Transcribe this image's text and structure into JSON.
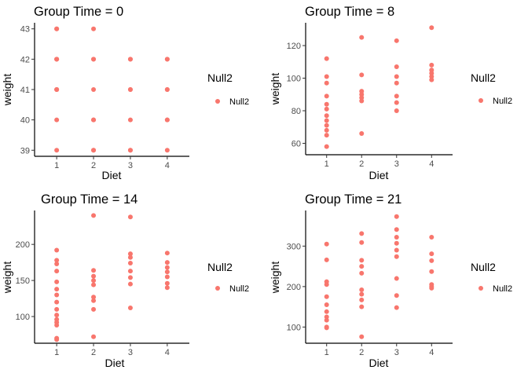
{
  "legend": {
    "title": "Null2",
    "label": "Null2",
    "color": "#F8766D"
  },
  "chart_data": [
    {
      "type": "scatter",
      "title": "Group Time  = 0",
      "xlabel": "Diet",
      "ylabel": "weight",
      "x_ticks": [
        1,
        2,
        3,
        4
      ],
      "y_ticks": [
        39,
        40,
        41,
        42,
        43
      ],
      "xlim": [
        0.4,
        4.6
      ],
      "ylim": [
        38.8,
        43.2
      ],
      "grid": false,
      "legend_position": "right",
      "series": [
        {
          "name": "Null2",
          "points": [
            [
              1,
              43
            ],
            [
              1,
              43
            ],
            [
              1,
              42
            ],
            [
              1,
              42
            ],
            [
              1,
              42
            ],
            [
              1,
              41
            ],
            [
              1,
              41
            ],
            [
              1,
              41
            ],
            [
              1,
              40
            ],
            [
              1,
              39
            ],
            [
              2,
              43
            ],
            [
              2,
              42
            ],
            [
              2,
              42
            ],
            [
              2,
              41
            ],
            [
              2,
              40
            ],
            [
              2,
              40
            ],
            [
              2,
              39
            ],
            [
              2,
              39
            ],
            [
              3,
              42
            ],
            [
              3,
              42
            ],
            [
              3,
              41
            ],
            [
              3,
              41
            ],
            [
              3,
              40
            ],
            [
              3,
              39
            ],
            [
              3,
              39
            ],
            [
              4,
              42
            ],
            [
              4,
              42
            ],
            [
              4,
              41
            ],
            [
              4,
              41
            ],
            [
              4,
              40
            ],
            [
              4,
              40
            ],
            [
              4,
              39
            ]
          ]
        }
      ]
    },
    {
      "type": "scatter",
      "title": "Group Time  = 8",
      "xlabel": "Diet",
      "ylabel": "weight",
      "x_ticks": [
        1,
        2,
        3,
        4
      ],
      "y_ticks": [
        60,
        80,
        100,
        120
      ],
      "xlim": [
        0.4,
        4.6
      ],
      "ylim": [
        53,
        134
      ],
      "grid": false,
      "legend_position": "right",
      "series": [
        {
          "name": "Null2",
          "points": [
            [
              1,
              112
            ],
            [
              1,
              101
            ],
            [
              1,
              97
            ],
            [
              1,
              89
            ],
            [
              1,
              84
            ],
            [
              1,
              81
            ],
            [
              1,
              77
            ],
            [
              1,
              74
            ],
            [
              1,
              71
            ],
            [
              1,
              68
            ],
            [
              1,
              65
            ],
            [
              1,
              58
            ],
            [
              2,
              125
            ],
            [
              2,
              102
            ],
            [
              2,
              92
            ],
            [
              2,
              90
            ],
            [
              2,
              88
            ],
            [
              2,
              86
            ],
            [
              2,
              66
            ],
            [
              3,
              123
            ],
            [
              3,
              107
            ],
            [
              3,
              101
            ],
            [
              3,
              97
            ],
            [
              3,
              89
            ],
            [
              3,
              85
            ],
            [
              3,
              80
            ],
            [
              4,
              131
            ],
            [
              4,
              108
            ],
            [
              4,
              105
            ],
            [
              4,
              103
            ],
            [
              4,
              101
            ],
            [
              4,
              99
            ]
          ]
        }
      ]
    },
    {
      "type": "scatter",
      "title": "Group Time  = 14",
      "xlabel": "Diet",
      "ylabel": "weight",
      "x_ticks": [
        1,
        2,
        3,
        4
      ],
      "y_ticks": [
        100,
        150,
        200
      ],
      "xlim": [
        0.4,
        4.6
      ],
      "ylim": [
        63,
        247
      ],
      "grid": false,
      "legend_position": "right",
      "series": [
        {
          "name": "Null2",
          "points": [
            [
              1,
              192
            ],
            [
              1,
              178
            ],
            [
              1,
              173
            ],
            [
              1,
              163
            ],
            [
              1,
              148
            ],
            [
              1,
              138
            ],
            [
              1,
              130
            ],
            [
              1,
              120
            ],
            [
              1,
              110
            ],
            [
              1,
              102
            ],
            [
              1,
              96
            ],
            [
              1,
              92
            ],
            [
              1,
              88
            ],
            [
              1,
              70
            ],
            [
              1,
              68
            ],
            [
              2,
              240
            ],
            [
              2,
              164
            ],
            [
              2,
              156
            ],
            [
              2,
              150
            ],
            [
              2,
              144
            ],
            [
              2,
              127
            ],
            [
              2,
              122
            ],
            [
              2,
              110
            ],
            [
              2,
              72
            ],
            [
              3,
              238
            ],
            [
              3,
              187
            ],
            [
              3,
              182
            ],
            [
              3,
              174
            ],
            [
              3,
              163
            ],
            [
              3,
              154
            ],
            [
              3,
              145
            ],
            [
              3,
              112
            ],
            [
              4,
              188
            ],
            [
              4,
              175
            ],
            [
              4,
              168
            ],
            [
              4,
              162
            ],
            [
              4,
              155
            ],
            [
              4,
              146
            ],
            [
              4,
              140
            ]
          ]
        }
      ]
    },
    {
      "type": "scatter",
      "title": "Group Time  = 21",
      "xlabel": "Diet",
      "ylabel": "weight",
      "x_ticks": [
        1,
        2,
        3,
        4
      ],
      "y_ticks": [
        100,
        200,
        300
      ],
      "xlim": [
        0.4,
        4.6
      ],
      "ylim": [
        60,
        388
      ],
      "grid": false,
      "legend_position": "right",
      "series": [
        {
          "name": "Null2",
          "points": [
            [
              1,
              305
            ],
            [
              1,
              266
            ],
            [
              1,
              212
            ],
            [
              1,
              205
            ],
            [
              1,
              175
            ],
            [
              1,
              155
            ],
            [
              1,
              138
            ],
            [
              1,
              125
            ],
            [
              1,
              117
            ],
            [
              1,
              100
            ],
            [
              1,
              98
            ],
            [
              2,
              331
            ],
            [
              2,
              309
            ],
            [
              2,
              265
            ],
            [
              2,
              250
            ],
            [
              2,
              233
            ],
            [
              2,
              192
            ],
            [
              2,
              181
            ],
            [
              2,
              167
            ],
            [
              2,
              150
            ],
            [
              2,
              76
            ],
            [
              3,
              373
            ],
            [
              3,
              341
            ],
            [
              3,
              322
            ],
            [
              3,
              307
            ],
            [
              3,
              290
            ],
            [
              3,
              274
            ],
            [
              3,
              220
            ],
            [
              3,
              178
            ],
            [
              3,
              148
            ],
            [
              4,
              322
            ],
            [
              4,
              281
            ],
            [
              4,
              264
            ],
            [
              4,
              237
            ],
            [
              4,
              205
            ],
            [
              4,
              200
            ],
            [
              4,
              196
            ]
          ]
        }
      ]
    }
  ]
}
